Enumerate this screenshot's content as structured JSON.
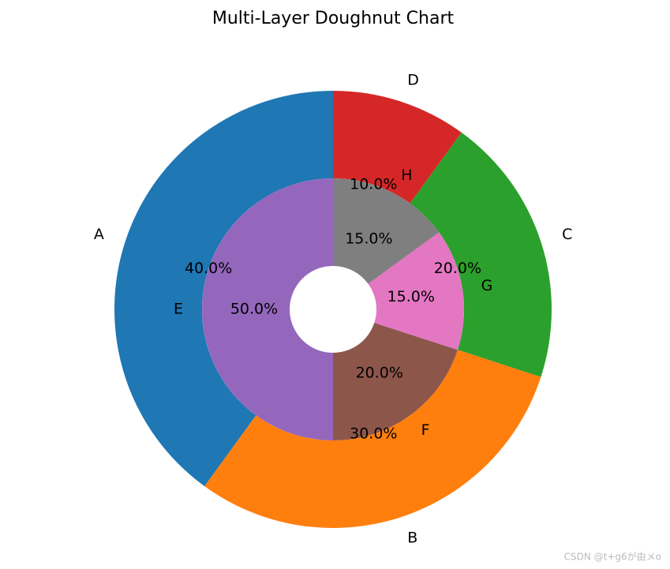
{
  "chart_data": {
    "type": "doughnut",
    "title": "Multi-Layer Doughnut Chart",
    "rings": [
      {
        "labels": [
          "A",
          "B",
          "C",
          "D"
        ],
        "values": [
          40,
          30,
          20,
          10
        ],
        "value_labels": [
          "40.0%",
          "30.0%",
          "20.0%",
          "10.0%"
        ],
        "colors": [
          "#1f77b4",
          "#ff7f0e",
          "#2ca02c",
          "#d62728"
        ]
      },
      {
        "labels": [
          "E",
          "F",
          "G",
          "H"
        ],
        "values": [
          50,
          20,
          15,
          15
        ],
        "value_labels": [
          "50.0%",
          "20.0%",
          "15.0%",
          "15.0%"
        ],
        "colors": [
          "#9467bd",
          "#8c564b",
          "#e377c2",
          "#7f7f7f"
        ]
      }
    ]
  },
  "watermark": "CSDN @t+g6が由メo"
}
